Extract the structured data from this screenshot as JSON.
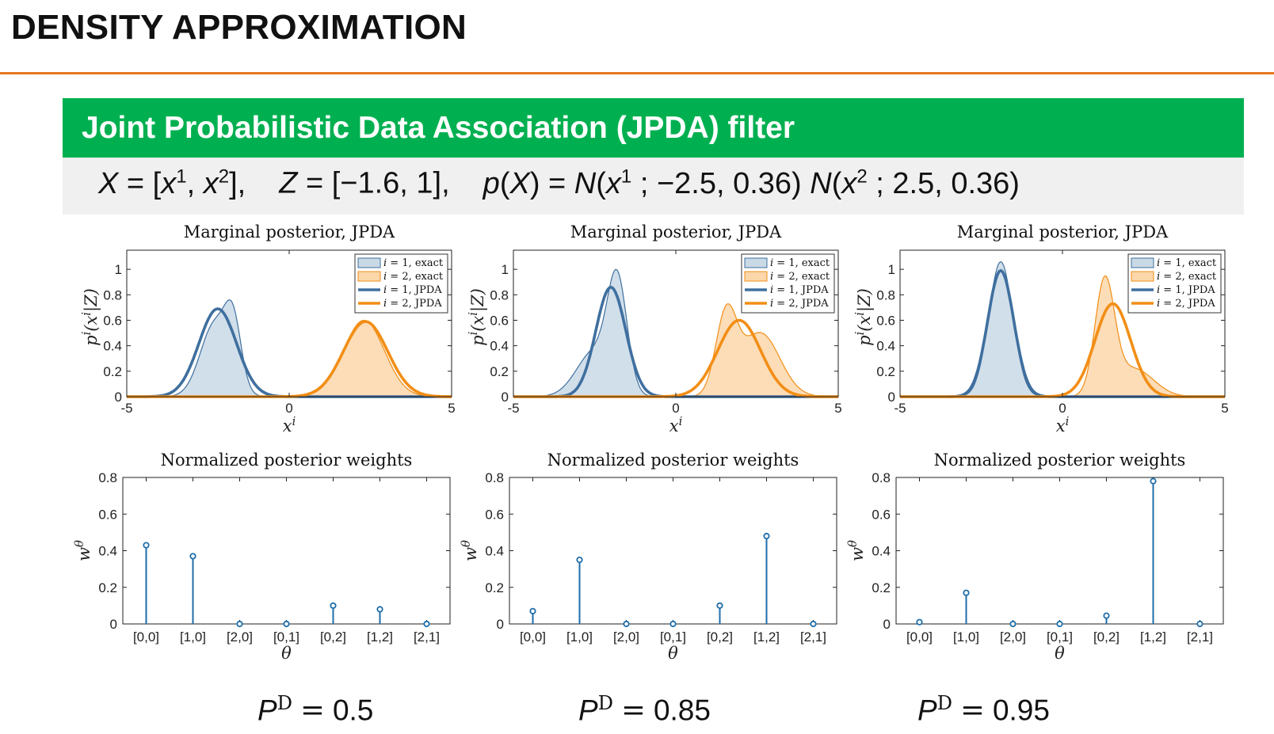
{
  "slide": {
    "title": "DENSITY APPROXIMATION",
    "accent_color": "#e87722",
    "block_header": "Joint Probabilistic Data Association (JPDA) filter",
    "block_color": "#00b050",
    "formula": {
      "X_def": "X = [x1, x2],",
      "Z_def": "Z = [−1.6, 1],",
      "prior_def": "p(X) = N(x1 ; −2.5, 0.36) N(x2 ; 2.5, 0.36)"
    }
  },
  "colors": {
    "track1": "#3f6f9f",
    "track1_fill": "#c9d9e6",
    "track2": "#f28e16",
    "track2_fill": "#fbd7aa",
    "stem": "#1f6eaa"
  },
  "chart_data": [
    {
      "type": "area",
      "title": "Marginal posterior, JPDA",
      "xlabel": "x^i",
      "ylabel": "p^i(x^i|Z)",
      "xlim": [
        -5,
        5
      ],
      "ylim": [
        0,
        1.15
      ],
      "xticks": [
        "-5",
        "0",
        "5"
      ],
      "yticks": [
        "0",
        "0.2",
        "0.4",
        "0.6",
        "0.8",
        "1"
      ],
      "legend": {
        "placement": "top-right",
        "entries": [
          "i = 1, exact",
          "i = 2, exact",
          "i = 1, JPDA",
          "i = 2, JPDA"
        ]
      },
      "series": [
        {
          "name": "i = 1, exact",
          "style": "fill",
          "track": 1,
          "peak_x": -1.95,
          "peak_y": 0.76,
          "components": [
            [
              0.56,
              -2.28,
              0.45
            ],
            [
              0.44,
              -1.72,
              0.25
            ]
          ]
        },
        {
          "name": "i = 2, exact",
          "style": "fill",
          "track": 2,
          "peak_x": 2.3,
          "peak_y": 0.6,
          "components": [
            [
              1.0,
              2.3,
              0.63
            ]
          ]
        },
        {
          "name": "i = 1, JPDA",
          "style": "line",
          "track": 1,
          "peak_x": -2.2,
          "peak_y": 0.69,
          "components": [
            [
              1.0,
              -2.2,
              0.58
            ]
          ]
        },
        {
          "name": "i = 2, JPDA",
          "style": "line",
          "track": 2,
          "peak_x": 2.35,
          "peak_y": 0.59,
          "components": [
            [
              1.0,
              2.35,
              0.68
            ]
          ]
        }
      ]
    },
    {
      "type": "area",
      "title": "Marginal posterior, JPDA",
      "xlabel": "x^i",
      "ylabel": "p^i(x^i|Z)",
      "xlim": [
        -5,
        5
      ],
      "ylim": [
        0,
        1.15
      ],
      "xticks": [
        "-5",
        "0",
        "5"
      ],
      "yticks": [
        "0",
        "0.2",
        "0.4",
        "0.6",
        "0.8",
        "1"
      ],
      "legend": {
        "placement": "top-right",
        "entries": [
          "i = 1, exact",
          "i = 2, exact",
          "i = 1, JPDA",
          "i = 2, JPDA"
        ]
      },
      "series": [
        {
          "name": "i = 1, exact",
          "style": "fill",
          "track": 1,
          "peak_x": -1.9,
          "peak_y": 1.0,
          "components": [
            [
              0.3,
              -2.5,
              0.55
            ],
            [
              0.7,
              -1.8,
              0.3
            ]
          ]
        },
        {
          "name": "i = 2, exact",
          "style": "fill",
          "track": 2,
          "peak_x": 1.6,
          "peak_y": 0.73,
          "components": [
            [
              0.55,
              1.55,
              0.32
            ],
            [
              0.45,
              2.6,
              0.6
            ]
          ]
        },
        {
          "name": "i = 1, JPDA",
          "style": "line",
          "track": 1,
          "peak_x": -2.0,
          "peak_y": 0.86,
          "components": [
            [
              1.0,
              -2.0,
              0.46
            ]
          ]
        },
        {
          "name": "i = 2, JPDA",
          "style": "line",
          "track": 2,
          "peak_x": 1.95,
          "peak_y": 0.6,
          "components": [
            [
              1.0,
              1.95,
              0.66
            ]
          ]
        }
      ]
    },
    {
      "type": "area",
      "title": "Marginal posterior, JPDA",
      "xlabel": "x^i",
      "ylabel": "p^i(x^i|Z)",
      "xlim": [
        -5,
        5
      ],
      "ylim": [
        0,
        1.15
      ],
      "xticks": [
        "-5",
        "0",
        "5"
      ],
      "yticks": [
        "0",
        "0.2",
        "0.4",
        "0.6",
        "0.8",
        "1"
      ],
      "legend": {
        "placement": "top-right",
        "entries": [
          "i = 1, exact",
          "i = 2, exact",
          "i = 1, JPDA",
          "i = 2, JPDA"
        ]
      },
      "series": [
        {
          "name": "i = 1, exact",
          "style": "fill",
          "track": 1,
          "peak_x": -1.9,
          "peak_y": 1.06,
          "components": [
            [
              1.0,
              -1.9,
              0.37
            ]
          ]
        },
        {
          "name": "i = 2, exact",
          "style": "fill",
          "track": 2,
          "peak_x": 1.3,
          "peak_y": 0.95,
          "components": [
            [
              0.8,
              1.3,
              0.3
            ],
            [
              0.2,
              2.2,
              0.6
            ]
          ]
        },
        {
          "name": "i = 1, JPDA",
          "style": "line",
          "track": 1,
          "peak_x": -1.9,
          "peak_y": 0.99,
          "components": [
            [
              1.0,
              -1.9,
              0.4
            ]
          ]
        },
        {
          "name": "i = 2, JPDA",
          "style": "line",
          "track": 2,
          "peak_x": 1.55,
          "peak_y": 0.73,
          "components": [
            [
              1.0,
              1.55,
              0.55
            ]
          ]
        }
      ]
    },
    {
      "type": "stem",
      "title": "Normalized posterior weights",
      "xlabel": "θ",
      "ylabel": "w^θ",
      "ylim": [
        0,
        0.8
      ],
      "yticks": [
        "0",
        "0.2",
        "0.4",
        "0.6",
        "0.8"
      ],
      "categories": [
        "[0,0]",
        "[1,0]",
        "[2,0]",
        "[0,1]",
        "[0,2]",
        "[1,2]",
        "[2,1]"
      ],
      "values": [
        0.43,
        0.37,
        0.0,
        0.0,
        0.1,
        0.08,
        0.0
      ]
    },
    {
      "type": "stem",
      "title": "Normalized posterior weights",
      "xlabel": "θ",
      "ylabel": "w^θ",
      "ylim": [
        0,
        0.8
      ],
      "yticks": [
        "0",
        "0.2",
        "0.4",
        "0.6",
        "0.8"
      ],
      "categories": [
        "[0,0]",
        "[1,0]",
        "[2,0]",
        "[0,1]",
        "[0,2]",
        "[1,2]",
        "[2,1]"
      ],
      "values": [
        0.07,
        0.35,
        0.0,
        0.0,
        0.1,
        0.48,
        0.0
      ]
    },
    {
      "type": "stem",
      "title": "Normalized posterior weights",
      "xlabel": "θ",
      "ylabel": "w^θ",
      "ylim": [
        0,
        0.8
      ],
      "yticks": [
        "0",
        "0.2",
        "0.4",
        "0.6",
        "0.8"
      ],
      "categories": [
        "[0,0]",
        "[1,0]",
        "[2,0]",
        "[0,1]",
        "[0,2]",
        "[1,2]",
        "[2,1]"
      ],
      "values": [
        0.01,
        0.17,
        0.0,
        0.0,
        0.045,
        0.78,
        0.0
      ]
    }
  ],
  "pd_labels": [
    {
      "symbol": "P",
      "superscript": "D",
      "value": "0.5"
    },
    {
      "symbol": "P",
      "superscript": "D",
      "value": "0.85"
    },
    {
      "symbol": "P",
      "superscript": "D",
      "value": "0.95"
    }
  ]
}
